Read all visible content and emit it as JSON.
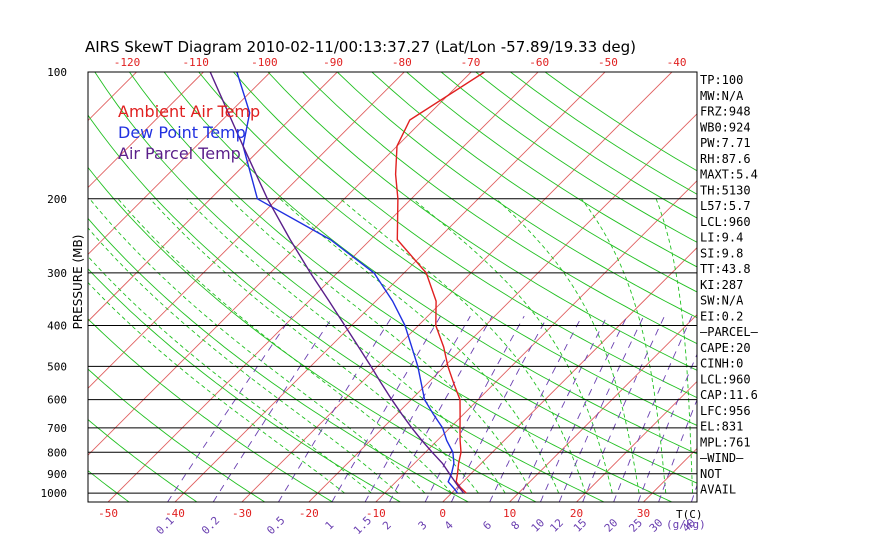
{
  "chart_data": {
    "type": "line",
    "title": "AIRS SkewT Diagram 2010-02-11/00:13:37.27 (Lat/Lon -57.89/19.33 deg)",
    "ylabel": "PRESSURE (MB)",
    "x_unit_label": "T(C)",
    "mixing_unit_label": "(g/kg)",
    "y_log_scale": true,
    "ylim": [
      1050,
      100
    ],
    "xlim_bottom": [
      -53,
      38
    ],
    "pressure_ticks": [
      100,
      200,
      300,
      400,
      500,
      600,
      700,
      800,
      900,
      1000
    ],
    "bottom_temp_ticks": [
      -50,
      -40,
      -30,
      -20,
      -10,
      0,
      10,
      20,
      30
    ],
    "top_temp_ticks": [
      -120,
      -110,
      -100,
      -90,
      -80,
      -70,
      -60,
      -50,
      -40
    ],
    "mixing_ratio_labels": [
      "0.1",
      "0.2",
      "0.5",
      "1",
      "1.5",
      "2",
      "3",
      "4",
      "6",
      "8",
      "10",
      "12",
      "15",
      "20",
      "25",
      "30",
      "40"
    ],
    "mixing_ratio_values": [
      0.1,
      0.2,
      0.5,
      1,
      1.5,
      2,
      3,
      4,
      6,
      8,
      10,
      12,
      15,
      20,
      25,
      30,
      40
    ],
    "isotherm_step_c": 10,
    "grid": true,
    "legend_placement": "top-left",
    "series": [
      {
        "name": "Ambient Air Temp",
        "color": "#e02020",
        "points": [
          [
            1000,
            2.2
          ],
          [
            970,
            0.5
          ],
          [
            940,
            -1.0
          ],
          [
            900,
            -2.0
          ],
          [
            850,
            -3.4
          ],
          [
            800,
            -4.7
          ],
          [
            750,
            -6.6
          ],
          [
            700,
            -8.5
          ],
          [
            650,
            -10.5
          ],
          [
            600,
            -12.7
          ],
          [
            550,
            -16.0
          ],
          [
            500,
            -19.5
          ],
          [
            450,
            -23.0
          ],
          [
            400,
            -27.4
          ],
          [
            350,
            -31.0
          ],
          [
            300,
            -36.7
          ],
          [
            250,
            -46.0
          ],
          [
            200,
            -52.0
          ],
          [
            175,
            -56.0
          ],
          [
            150,
            -60.0
          ],
          [
            130,
            -62.0
          ],
          [
            100,
            -58.0
          ]
        ]
      },
      {
        "name": "Dew Point Temp",
        "color": "#2030e0",
        "points": [
          [
            1000,
            0.9
          ],
          [
            970,
            -0.6
          ],
          [
            940,
            -2.2
          ],
          [
            900,
            -2.9
          ],
          [
            850,
            -4.1
          ],
          [
            800,
            -5.9
          ],
          [
            750,
            -8.6
          ],
          [
            700,
            -11.1
          ],
          [
            650,
            -14.5
          ],
          [
            600,
            -18.0
          ],
          [
            500,
            -24.0
          ],
          [
            400,
            -32.0
          ],
          [
            350,
            -37.5
          ],
          [
            300,
            -44.5
          ],
          [
            250,
            -56.0
          ],
          [
            200,
            -73.0
          ],
          [
            150,
            -83.0
          ],
          [
            125,
            -87.0
          ],
          [
            100,
            -95.0
          ]
        ]
      },
      {
        "name": "Air Parcel Temp",
        "color": "#5a1f8a",
        "points": [
          [
            1000,
            1.8
          ],
          [
            960,
            -0.2
          ],
          [
            900,
            -3.2
          ],
          [
            850,
            -5.8
          ],
          [
            800,
            -9.0
          ],
          [
            750,
            -12.3
          ],
          [
            700,
            -15.7
          ],
          [
            650,
            -19.2
          ],
          [
            600,
            -22.9
          ],
          [
            550,
            -26.8
          ],
          [
            500,
            -31.0
          ],
          [
            450,
            -35.7
          ],
          [
            400,
            -41.0
          ],
          [
            350,
            -47.0
          ],
          [
            300,
            -54.0
          ],
          [
            250,
            -62.0
          ],
          [
            200,
            -71.5
          ],
          [
            150,
            -83.0
          ],
          [
            100,
            -99.0
          ]
        ]
      }
    ]
  },
  "stats": [
    "TP:100",
    "MW:N/A",
    "FRZ:948",
    "WB0:924",
    "PW:7.71",
    "RH:87.6",
    "MAXT:5.4",
    "TH:5130",
    "L57:5.7",
    "LCL:960",
    "LI:9.4",
    "SI:9.8",
    "TT:43.8",
    "KI:287",
    "SW:N/A",
    "EI:0.2",
    "—PARCEL—",
    "CAPE:20",
    "CINH:0",
    "LCL:960",
    "CAP:11.6",
    "LFC:956",
    "EL:831",
    "MPL:761",
    "—WIND—",
    "NOT",
    "AVAIL"
  ],
  "colors": {
    "isotherm": "#e06060",
    "dry_adiabat": "#22c022",
    "moist_adiabat": "#22c022",
    "mixing_ratio": "#6a3fb0",
    "axis": "#000000",
    "temp_tick": "#e02020"
  }
}
